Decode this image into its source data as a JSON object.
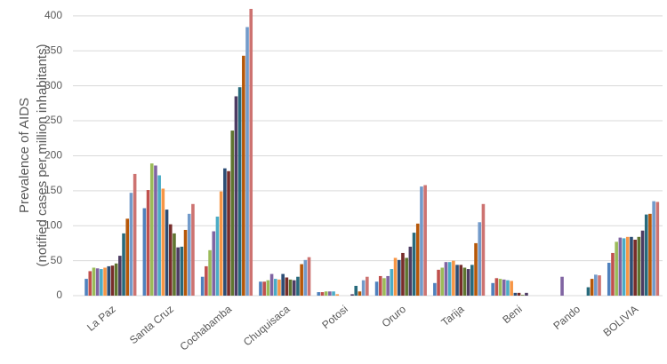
{
  "chart_data": {
    "type": "bar",
    "ylabel": [
      "Prevalence of AIDS",
      "(notified cases per million inhabitants)"
    ],
    "categories": [
      "La Paz",
      "Santa Cruz",
      "Cochabamba",
      "Chuquisaca",
      "Potosi",
      "Oruro",
      "Tarija",
      "Beni",
      "Pando",
      "BOLIVIA"
    ],
    "series": [
      {
        "color": "#4F81BD",
        "values": [
          24,
          125,
          27,
          20,
          5,
          20,
          18,
          18,
          0,
          47
        ]
      },
      {
        "color": "#C0504D",
        "values": [
          35,
          151,
          42,
          20,
          5,
          28,
          37,
          25,
          0,
          61
        ]
      },
      {
        "color": "#9BBB59",
        "values": [
          40,
          189,
          65,
          22,
          6,
          25,
          40,
          24,
          0,
          77
        ]
      },
      {
        "color": "#8064A2",
        "values": [
          39,
          186,
          92,
          31,
          6,
          28,
          48,
          23,
          27,
          83
        ]
      },
      {
        "color": "#4BACC6",
        "values": [
          38,
          172,
          113,
          24,
          6,
          38,
          48,
          22,
          0,
          82
        ]
      },
      {
        "color": "#F79646",
        "values": [
          40,
          153,
          149,
          23,
          2,
          54,
          50,
          21,
          0,
          84
        ]
      },
      {
        "color": "#2C4D75",
        "values": [
          42,
          123,
          182,
          31,
          0,
          51,
          44,
          4,
          0,
          84
        ]
      },
      {
        "color": "#772C2A",
        "values": [
          43,
          102,
          178,
          26,
          0,
          61,
          44,
          4,
          0,
          80
        ]
      },
      {
        "color": "#5F7530",
        "values": [
          46,
          89,
          236,
          23,
          0,
          54,
          40,
          1,
          0,
          84
        ]
      },
      {
        "color": "#4D3B62",
        "values": [
          57,
          69,
          285,
          22,
          2,
          70,
          38,
          4,
          0,
          93
        ]
      },
      {
        "color": "#276A7C",
        "values": [
          89,
          70,
          298,
          27,
          14,
          90,
          44,
          0,
          12,
          116
        ]
      },
      {
        "color": "#B65708",
        "values": [
          110,
          94,
          343,
          45,
          6,
          103,
          75,
          0,
          24,
          117
        ]
      },
      {
        "color": "#729ACA",
        "values": [
          147,
          117,
          384,
          51,
          22,
          156,
          105,
          0,
          30,
          135
        ]
      },
      {
        "color": "#CD7371",
        "values": [
          174,
          131,
          410,
          55,
          27,
          158,
          131,
          0,
          29,
          134
        ]
      }
    ],
    "ylim": [
      0,
      410
    ],
    "yticks": [
      0,
      50,
      100,
      150,
      200,
      250,
      300,
      350,
      400
    ],
    "grid": true
  }
}
